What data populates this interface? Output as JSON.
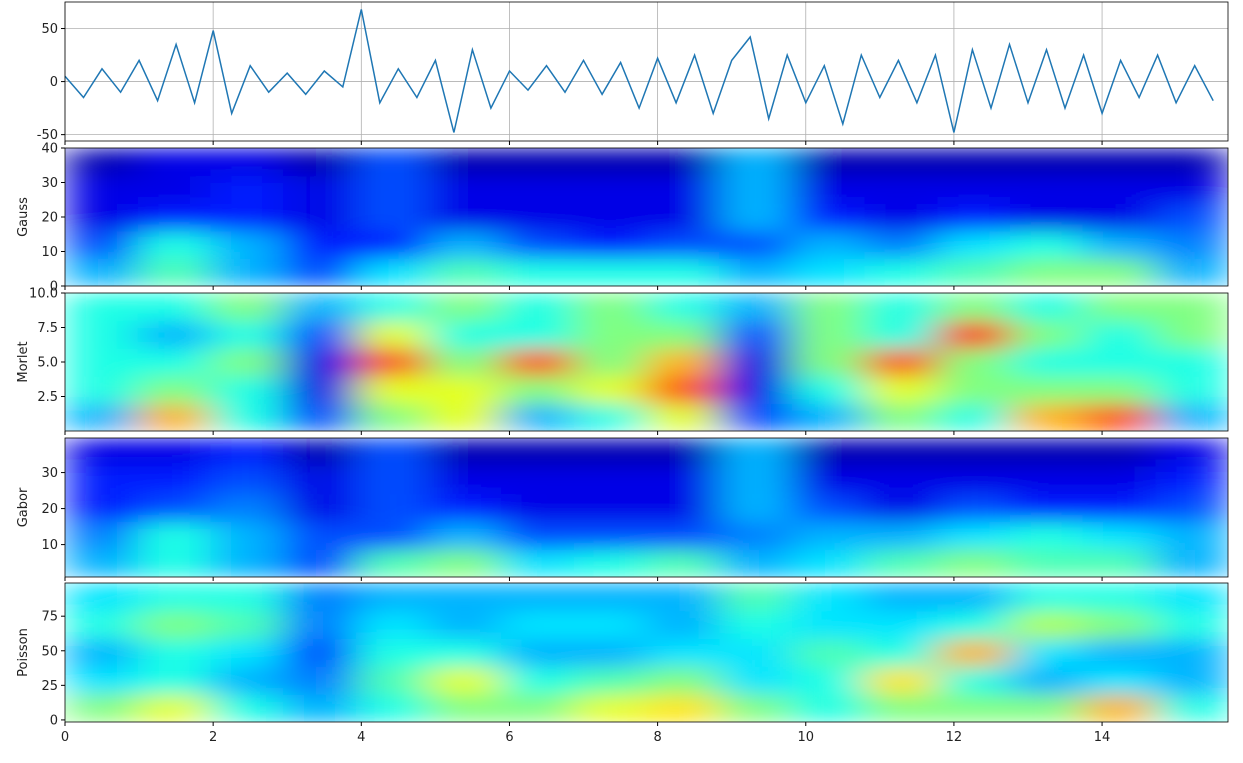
{
  "chart_data": [
    {
      "type": "line",
      "color": "#1f77b4",
      "grid": true,
      "x": [
        0,
        0.25,
        0.5,
        0.75,
        1,
        1.25,
        1.5,
        1.75,
        2,
        2.25,
        2.5,
        2.75,
        3,
        3.25,
        3.5,
        3.75,
        4,
        4.25,
        4.5,
        4.75,
        5,
        5.25,
        5.5,
        5.75,
        6,
        6.25,
        6.5,
        6.75,
        7,
        7.25,
        7.5,
        7.75,
        8,
        8.25,
        8.5,
        8.75,
        9,
        9.25,
        9.5,
        9.75,
        10,
        10.25,
        10.5,
        10.75,
        11,
        11.25,
        11.5,
        11.75,
        12,
        12.25,
        12.5,
        12.75,
        13,
        13.25,
        13.5,
        13.75,
        14,
        14.25,
        14.5,
        14.75,
        15,
        15.25,
        15.5
      ],
      "values": [
        5,
        -15,
        12,
        -10,
        20,
        -18,
        35,
        -20,
        48,
        -30,
        15,
        -10,
        8,
        -12,
        10,
        -5,
        68,
        -20,
        12,
        -15,
        20,
        -48,
        30,
        -25,
        10,
        -8,
        15,
        -10,
        20,
        -12,
        18,
        -25,
        22,
        -20,
        25,
        -30,
        20,
        42,
        -35,
        25,
        -20,
        15,
        -40,
        25,
        -15,
        20,
        -20,
        25,
        -48,
        30,
        -25,
        35,
        -20,
        30,
        -25,
        25,
        -30,
        20,
        -15,
        25,
        -20,
        15,
        -18
      ],
      "xlim": [
        0,
        15.7
      ],
      "ylim": [
        -56,
        75
      ],
      "yticks": [
        -50,
        0,
        50
      ],
      "xticks": [
        0,
        2,
        4,
        6,
        8,
        10,
        12,
        14
      ]
    },
    {
      "type": "heatmap",
      "ylabel": "Gauss",
      "colormap": "jet",
      "xlim": [
        0,
        15.7
      ],
      "ylim": [
        0,
        40
      ],
      "yticks": [
        0,
        10,
        20,
        30,
        40
      ],
      "values": [
        [
          0.3,
          0.45,
          0.3,
          0.2,
          0.35,
          0.45,
          0.4,
          0.4,
          0.4,
          0.3,
          0.35,
          0.4,
          0.45,
          0.5,
          0.5,
          0.3
        ],
        [
          0.2,
          0.4,
          0.3,
          0.15,
          0.15,
          0.3,
          0.2,
          0.15,
          0.2,
          0.2,
          0.3,
          0.25,
          0.35,
          0.4,
          0.3,
          0.25
        ],
        [
          0.1,
          0.15,
          0.15,
          0.1,
          0.2,
          0.1,
          0.1,
          0.1,
          0.1,
          0.3,
          0.15,
          0.1,
          0.15,
          0.1,
          0.1,
          0.2
        ],
        [
          0.1,
          0.1,
          0.15,
          0.1,
          0.2,
          0.1,
          0.1,
          0.1,
          0.1,
          0.3,
          0.1,
          0.1,
          0.1,
          0.1,
          0.1,
          0.1
        ],
        [
          0.05,
          0.1,
          0.1,
          0.05,
          0.2,
          0.05,
          0.05,
          0.05,
          0.05,
          0.3,
          0.05,
          0.05,
          0.05,
          0.05,
          0.05,
          0.05
        ]
      ]
    },
    {
      "type": "heatmap",
      "ylabel": "Morlet",
      "colormap": "jet",
      "xlim": [
        0,
        15.7
      ],
      "ylim": [
        0,
        10
      ],
      "yticks": [
        2.5,
        {
          "value": 5,
          "label": "5.0"
        },
        7.5,
        {
          "value": 10,
          "label": "10.0"
        }
      ],
      "values": [
        [
          0.3,
          0.7,
          0.4,
          0.2,
          0.5,
          0.6,
          0.3,
          0.4,
          0.6,
          0.2,
          0.3,
          0.5,
          0.4,
          0.7,
          0.8,
          0.3
        ],
        [
          0.4,
          0.5,
          0.4,
          0.1,
          0.6,
          0.6,
          0.5,
          0.6,
          0.8,
          0.1,
          0.4,
          0.6,
          0.5,
          0.5,
          0.5,
          0.4
        ],
        [
          0.4,
          0.4,
          0.5,
          0.1,
          0.8,
          0.5,
          0.8,
          0.5,
          0.7,
          0.1,
          0.5,
          0.8,
          0.5,
          0.4,
          0.4,
          0.4
        ],
        [
          0.4,
          0.3,
          0.4,
          0.2,
          0.6,
          0.4,
          0.4,
          0.5,
          0.5,
          0.2,
          0.5,
          0.4,
          0.85,
          0.5,
          0.4,
          0.5
        ],
        [
          0.4,
          0.4,
          0.5,
          0.3,
          0.4,
          0.5,
          0.4,
          0.5,
          0.4,
          0.3,
          0.5,
          0.4,
          0.5,
          0.4,
          0.5,
          0.5
        ]
      ]
    },
    {
      "type": "heatmap",
      "ylabel": "Gabor",
      "colormap": "jet",
      "xlim": [
        0,
        15.7
      ],
      "ylim": [
        1,
        39.6
      ],
      "yticks": [
        10,
        20,
        30
      ],
      "values": [
        [
          0.3,
          0.4,
          0.3,
          0.2,
          0.45,
          0.5,
          0.35,
          0.4,
          0.45,
          0.3,
          0.35,
          0.45,
          0.5,
          0.45,
          0.45,
          0.3
        ],
        [
          0.25,
          0.4,
          0.3,
          0.2,
          0.2,
          0.3,
          0.2,
          0.2,
          0.2,
          0.25,
          0.3,
          0.3,
          0.35,
          0.4,
          0.35,
          0.3
        ],
        [
          0.15,
          0.2,
          0.25,
          0.1,
          0.2,
          0.15,
          0.1,
          0.1,
          0.1,
          0.3,
          0.2,
          0.1,
          0.2,
          0.15,
          0.15,
          0.2
        ],
        [
          0.15,
          0.15,
          0.2,
          0.1,
          0.2,
          0.1,
          0.1,
          0.1,
          0.1,
          0.3,
          0.1,
          0.1,
          0.1,
          0.1,
          0.1,
          0.15
        ],
        [
          0.1,
          0.1,
          0.15,
          0.05,
          0.2,
          0.05,
          0.05,
          0.05,
          0.05,
          0.3,
          0.05,
          0.05,
          0.05,
          0.05,
          0.05,
          0.1
        ]
      ]
    },
    {
      "type": "heatmap",
      "ylabel": "Poisson",
      "colormap": "jet",
      "xlim": [
        0,
        15.7
      ],
      "ylim": [
        -1.5,
        99
      ],
      "yticks": [
        0,
        25,
        50,
        75
      ],
      "xticks": [
        0,
        2,
        4,
        6,
        8,
        10,
        12,
        14
      ],
      "values": [
        [
          0.5,
          0.6,
          0.4,
          0.3,
          0.4,
          0.5,
          0.5,
          0.6,
          0.65,
          0.5,
          0.4,
          0.5,
          0.5,
          0.5,
          0.7,
          0.4
        ],
        [
          0.35,
          0.4,
          0.3,
          0.25,
          0.45,
          0.6,
          0.4,
          0.45,
          0.5,
          0.35,
          0.4,
          0.65,
          0.4,
          0.3,
          0.35,
          0.3
        ],
        [
          0.3,
          0.4,
          0.35,
          0.2,
          0.4,
          0.4,
          0.3,
          0.3,
          0.35,
          0.35,
          0.45,
          0.4,
          0.7,
          0.35,
          0.3,
          0.3
        ],
        [
          0.4,
          0.5,
          0.45,
          0.25,
          0.35,
          0.3,
          0.35,
          0.35,
          0.3,
          0.4,
          0.35,
          0.35,
          0.4,
          0.55,
          0.5,
          0.4
        ],
        [
          0.35,
          0.4,
          0.4,
          0.25,
          0.3,
          0.3,
          0.3,
          0.3,
          0.3,
          0.45,
          0.35,
          0.3,
          0.3,
          0.4,
          0.4,
          0.35
        ]
      ]
    }
  ]
}
